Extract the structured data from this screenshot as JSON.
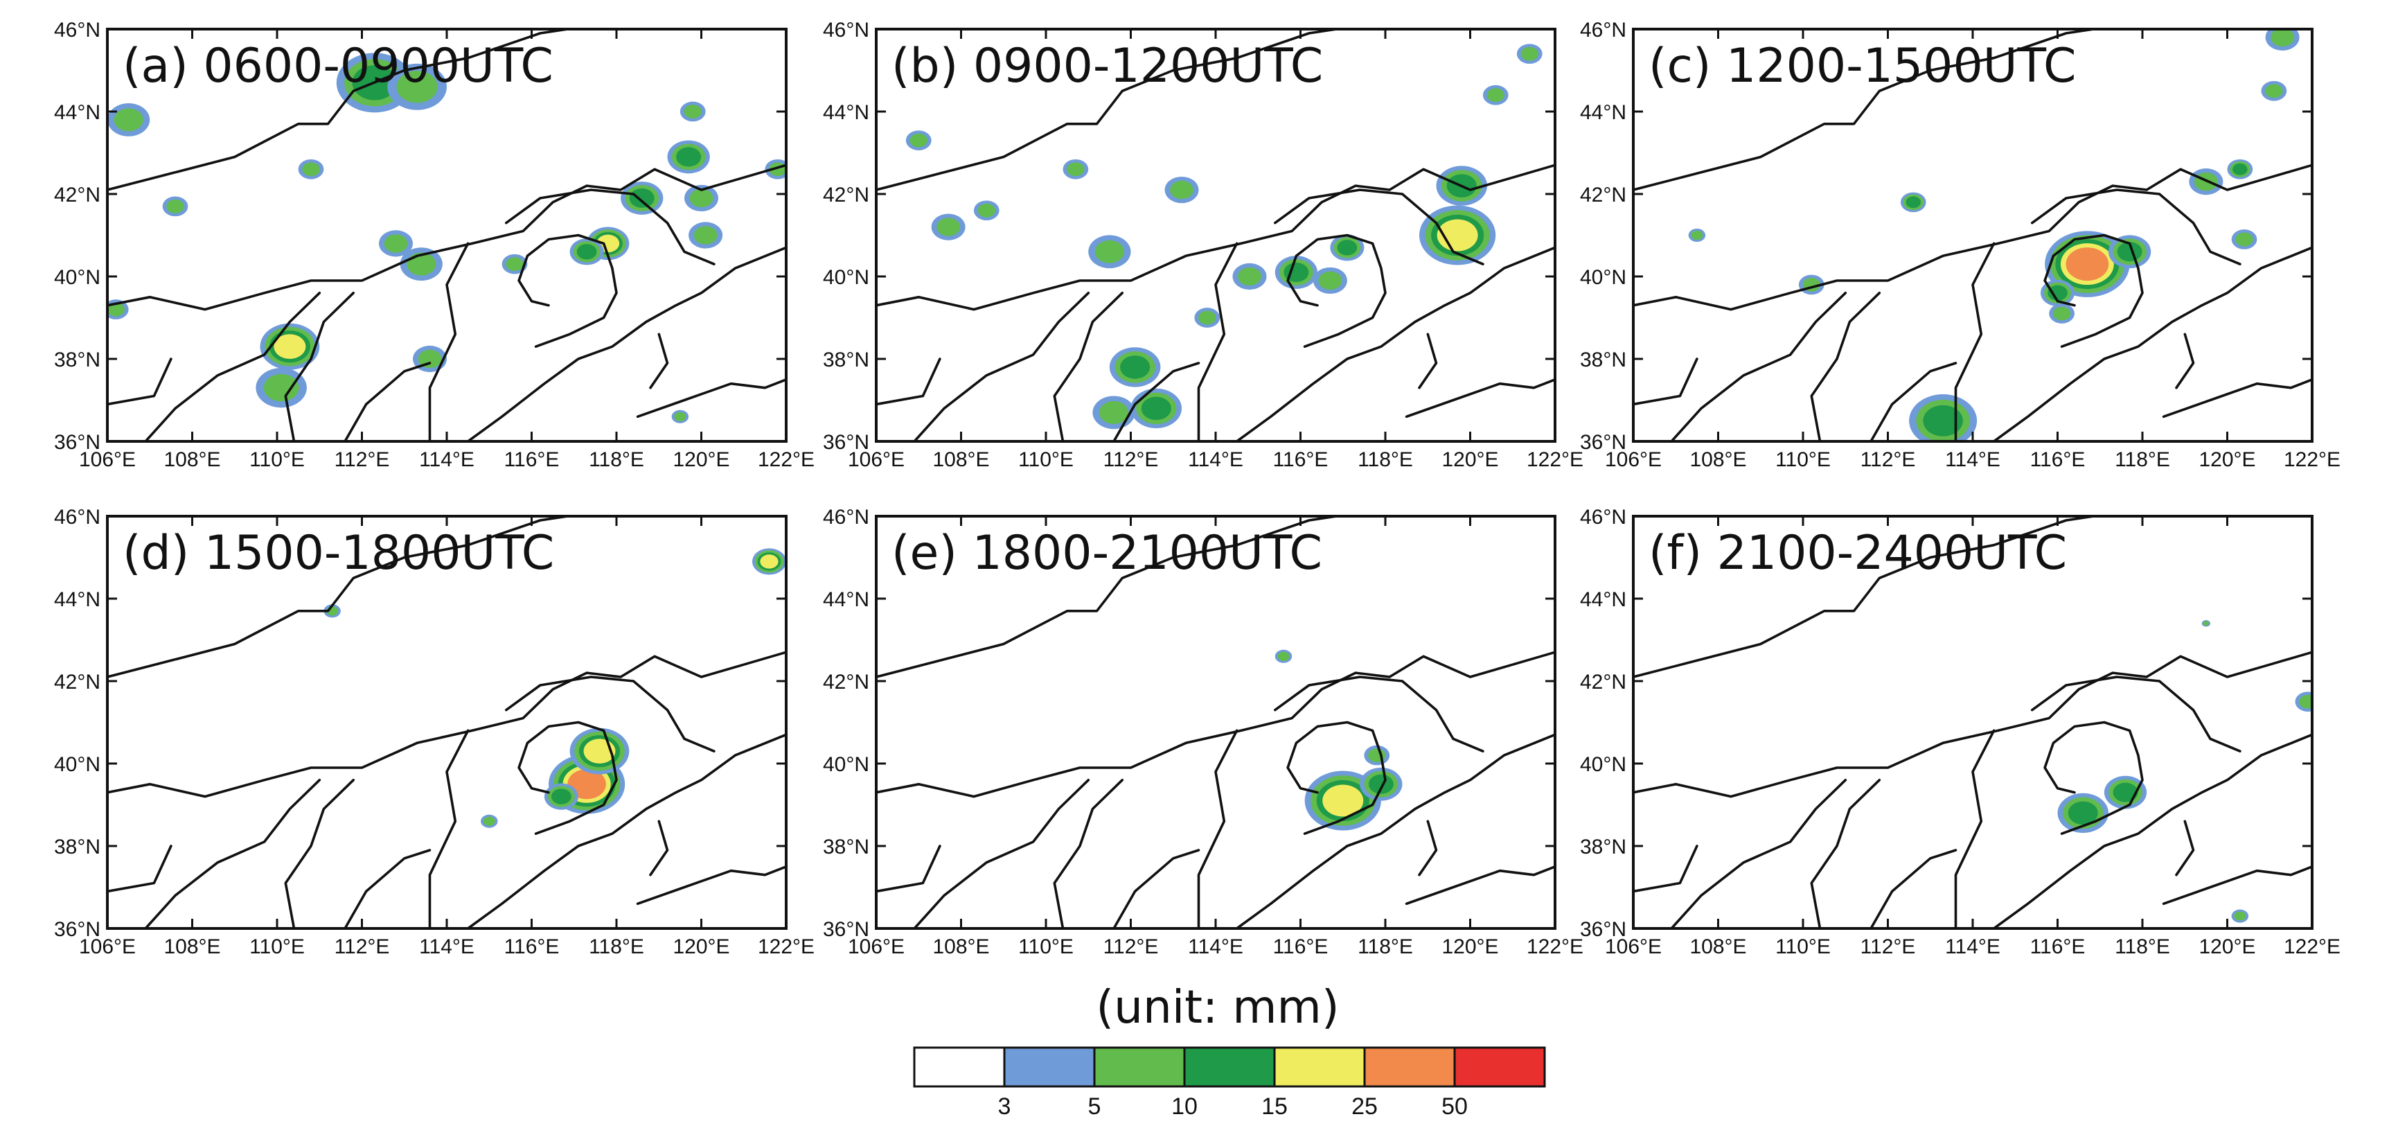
{
  "figure": {
    "lon_ticks": [
      "106°E",
      "108°E",
      "110°E",
      "112°E",
      "114°E",
      "116°E",
      "118°E",
      "120°E",
      "122°E"
    ],
    "lat_ticks": [
      "36°N",
      "38°N",
      "40°N",
      "42°N",
      "44°N",
      "46°N"
    ],
    "extent": {
      "lon": [
        106,
        122
      ],
      "lat": [
        36,
        46
      ]
    },
    "panels": [
      {
        "id": "a",
        "title": "(a) 0600-0900UTC",
        "cells": [
          {
            "lon": 112.3,
            "lat": 44.7,
            "r": 0.9,
            "v": 12
          },
          {
            "lon": 113.3,
            "lat": 44.6,
            "r": 0.7,
            "v": 8
          },
          {
            "lon": 106.5,
            "lat": 43.8,
            "r": 0.5,
            "v": 6
          },
          {
            "lon": 110.3,
            "lat": 38.3,
            "r": 0.7,
            "v": 18
          },
          {
            "lon": 110.1,
            "lat": 37.3,
            "r": 0.6,
            "v": 8
          },
          {
            "lon": 112.8,
            "lat": 40.8,
            "r": 0.4,
            "v": 7
          },
          {
            "lon": 113.4,
            "lat": 40.3,
            "r": 0.5,
            "v": 9
          },
          {
            "lon": 113.6,
            "lat": 38.0,
            "r": 0.4,
            "v": 8
          },
          {
            "lon": 117.8,
            "lat": 40.8,
            "r": 0.5,
            "v": 20
          },
          {
            "lon": 117.3,
            "lat": 40.6,
            "r": 0.4,
            "v": 12
          },
          {
            "lon": 118.6,
            "lat": 41.9,
            "r": 0.5,
            "v": 10
          },
          {
            "lon": 119.7,
            "lat": 42.9,
            "r": 0.5,
            "v": 14
          },
          {
            "lon": 120.0,
            "lat": 41.9,
            "r": 0.4,
            "v": 8
          },
          {
            "lon": 120.1,
            "lat": 41.0,
            "r": 0.4,
            "v": 9
          },
          {
            "lon": 119.8,
            "lat": 44.0,
            "r": 0.3,
            "v": 7
          },
          {
            "lon": 121.8,
            "lat": 42.6,
            "r": 0.3,
            "v": 6
          },
          {
            "lon": 110.8,
            "lat": 42.6,
            "r": 0.3,
            "v": 5
          },
          {
            "lon": 107.6,
            "lat": 41.7,
            "r": 0.3,
            "v": 6
          },
          {
            "lon": 115.6,
            "lat": 40.3,
            "r": 0.3,
            "v": 6
          },
          {
            "lon": 106.2,
            "lat": 39.2,
            "r": 0.3,
            "v": 7
          },
          {
            "lon": 119.5,
            "lat": 36.6,
            "r": 0.2,
            "v": 6
          }
        ]
      },
      {
        "id": "b",
        "title": "(b) 0900-1200UTC",
        "cells": [
          {
            "lon": 119.7,
            "lat": 41.0,
            "r": 0.9,
            "v": 22
          },
          {
            "lon": 119.8,
            "lat": 42.2,
            "r": 0.6,
            "v": 14
          },
          {
            "lon": 117.1,
            "lat": 40.7,
            "r": 0.4,
            "v": 12
          },
          {
            "lon": 115.9,
            "lat": 40.1,
            "r": 0.5,
            "v": 12
          },
          {
            "lon": 116.7,
            "lat": 39.9,
            "r": 0.4,
            "v": 9
          },
          {
            "lon": 114.8,
            "lat": 40.0,
            "r": 0.4,
            "v": 8
          },
          {
            "lon": 113.8,
            "lat": 39.0,
            "r": 0.3,
            "v": 7
          },
          {
            "lon": 111.5,
            "lat": 40.6,
            "r": 0.5,
            "v": 8
          },
          {
            "lon": 113.2,
            "lat": 42.1,
            "r": 0.4,
            "v": 9
          },
          {
            "lon": 112.1,
            "lat": 37.8,
            "r": 0.6,
            "v": 10
          },
          {
            "lon": 111.6,
            "lat": 36.7,
            "r": 0.5,
            "v": 8
          },
          {
            "lon": 112.6,
            "lat": 36.8,
            "r": 0.6,
            "v": 11
          },
          {
            "lon": 107.7,
            "lat": 41.2,
            "r": 0.4,
            "v": 8
          },
          {
            "lon": 107.0,
            "lat": 43.3,
            "r": 0.3,
            "v": 7
          },
          {
            "lon": 120.6,
            "lat": 44.4,
            "r": 0.3,
            "v": 7
          },
          {
            "lon": 121.4,
            "lat": 45.4,
            "r": 0.3,
            "v": 8
          },
          {
            "lon": 110.7,
            "lat": 42.6,
            "r": 0.3,
            "v": 6
          },
          {
            "lon": 108.6,
            "lat": 41.6,
            "r": 0.3,
            "v": 6
          }
        ]
      },
      {
        "id": "c",
        "title": "(c) 1200-1500UTC",
        "cells": [
          {
            "lon": 116.7,
            "lat": 40.3,
            "r": 1.0,
            "v": 26
          },
          {
            "lon": 117.7,
            "lat": 40.6,
            "r": 0.5,
            "v": 14
          },
          {
            "lon": 116.0,
            "lat": 39.6,
            "r": 0.4,
            "v": 12
          },
          {
            "lon": 116.1,
            "lat": 39.1,
            "r": 0.3,
            "v": 8
          },
          {
            "lon": 113.3,
            "lat": 36.5,
            "r": 0.8,
            "v": 10
          },
          {
            "lon": 112.6,
            "lat": 41.8,
            "r": 0.3,
            "v": 14
          },
          {
            "lon": 119.5,
            "lat": 42.3,
            "r": 0.4,
            "v": 8
          },
          {
            "lon": 120.3,
            "lat": 42.6,
            "r": 0.3,
            "v": 10
          },
          {
            "lon": 121.3,
            "lat": 45.8,
            "r": 0.4,
            "v": 8
          },
          {
            "lon": 121.1,
            "lat": 44.5,
            "r": 0.3,
            "v": 7
          },
          {
            "lon": 110.2,
            "lat": 39.8,
            "r": 0.3,
            "v": 7
          },
          {
            "lon": 107.5,
            "lat": 41.0,
            "r": 0.2,
            "v": 5
          },
          {
            "lon": 120.4,
            "lat": 40.9,
            "r": 0.3,
            "v": 6
          }
        ]
      },
      {
        "id": "d",
        "title": "(d) 1500-1800UTC",
        "cells": [
          {
            "lon": 117.3,
            "lat": 39.5,
            "r": 0.9,
            "v": 42
          },
          {
            "lon": 117.6,
            "lat": 40.3,
            "r": 0.7,
            "v": 18
          },
          {
            "lon": 116.7,
            "lat": 39.2,
            "r": 0.4,
            "v": 14
          },
          {
            "lon": 121.6,
            "lat": 44.9,
            "r": 0.4,
            "v": 16
          },
          {
            "lon": 111.3,
            "lat": 43.7,
            "r": 0.2,
            "v": 6
          },
          {
            "lon": 115.0,
            "lat": 38.6,
            "r": 0.2,
            "v": 5
          }
        ]
      },
      {
        "id": "e",
        "title": "(e) 1800-2100UTC",
        "cells": [
          {
            "lon": 117.0,
            "lat": 39.1,
            "r": 0.9,
            "v": 20
          },
          {
            "lon": 117.9,
            "lat": 39.5,
            "r": 0.5,
            "v": 12
          },
          {
            "lon": 115.6,
            "lat": 42.6,
            "r": 0.2,
            "v": 6
          },
          {
            "lon": 117.8,
            "lat": 40.2,
            "r": 0.3,
            "v": 6
          }
        ]
      },
      {
        "id": "f",
        "title": "(f) 2100-2400UTC",
        "cells": [
          {
            "lon": 116.6,
            "lat": 38.8,
            "r": 0.6,
            "v": 14
          },
          {
            "lon": 117.6,
            "lat": 39.3,
            "r": 0.5,
            "v": 10
          },
          {
            "lon": 121.9,
            "lat": 41.5,
            "r": 0.3,
            "v": 8
          },
          {
            "lon": 120.3,
            "lat": 36.3,
            "r": 0.2,
            "v": 5
          },
          {
            "lon": 119.5,
            "lat": 43.4,
            "r": 0.1,
            "v": 5
          }
        ]
      }
    ]
  },
  "colorbar": {
    "unit_label": "(unit: mm)",
    "levels": [
      "3",
      "5",
      "10",
      "15",
      "25",
      "50"
    ],
    "colors": [
      "#ffffff",
      "#6f9bd8",
      "#62bb4d",
      "#1e9a48",
      "#f0ec60",
      "#f28a4c",
      "#e8302f"
    ]
  }
}
